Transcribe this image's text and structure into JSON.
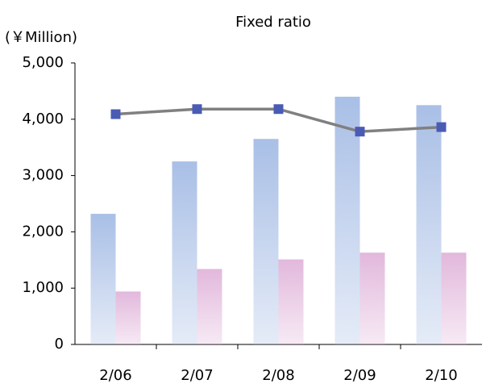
{
  "chart_data": {
    "type": "bar",
    "title": "Fixed ratio",
    "y_label": "(￥Million)",
    "categories": [
      "2/06",
      "2/07",
      "2/08",
      "2/09",
      "2/10"
    ],
    "series": [
      {
        "color": "#a9bfe6",
        "values": [
          2320,
          3250,
          3650,
          4400,
          4250
        ]
      },
      {
        "color": "#e2b8dc",
        "values": [
          940,
          1340,
          1510,
          1630,
          1630
        ]
      },
      {
        "type": "line",
        "color": "#808080",
        "marker_color": "#4a5bb5",
        "values": [
          4090,
          4180,
          4180,
          3780,
          3860
        ]
      }
    ],
    "ylim": [
      0,
      5000
    ],
    "yticks": [
      0,
      {
        "value": 1000,
        "label": "1,000"
      },
      {
        "value": 2000,
        "label": "2,000"
      },
      {
        "value": 3000,
        "label": "3,000"
      },
      {
        "value": 4000,
        "label": "4,000"
      },
      {
        "value": 5000,
        "label": "5,000"
      }
    ],
    "grid": false
  }
}
